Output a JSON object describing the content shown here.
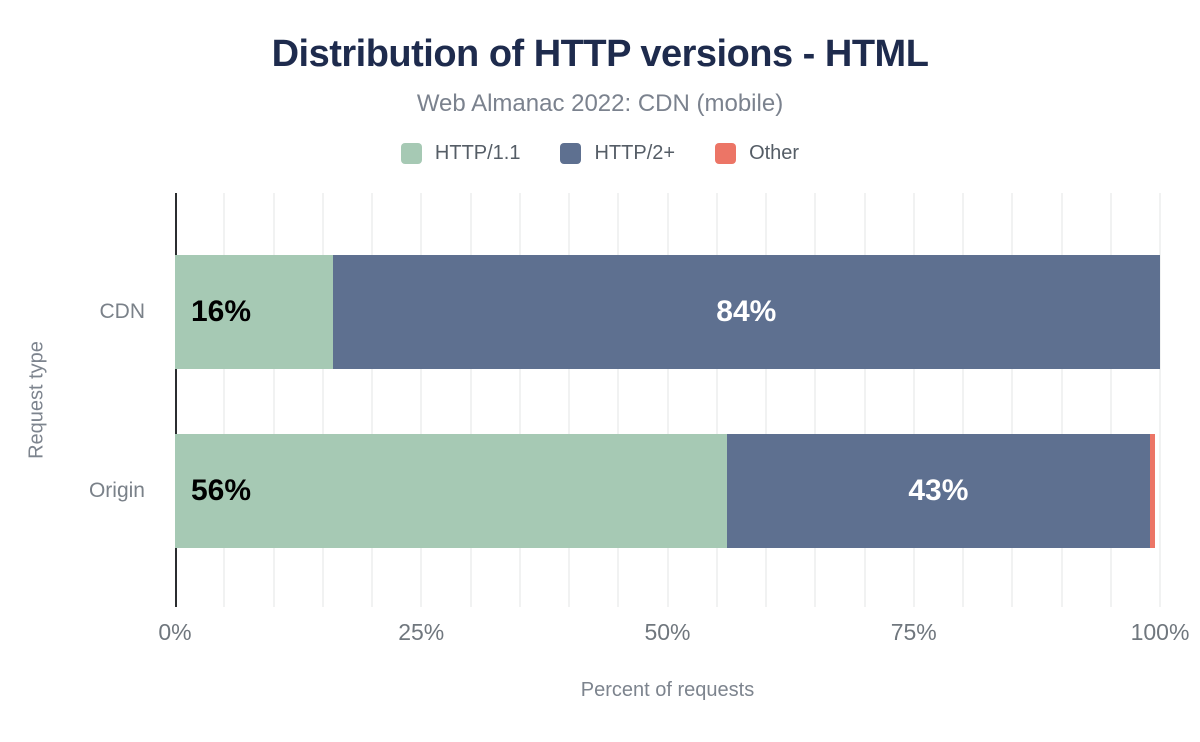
{
  "header": {
    "title": "Distribution of HTTP versions - HTML",
    "subtitle": "Web Almanac 2022: CDN (mobile)"
  },
  "chart_data": {
    "type": "bar",
    "orientation": "horizontal",
    "stacked": true,
    "title": "Distribution of HTTP versions - HTML",
    "subtitle": "Web Almanac 2022: CDN (mobile)",
    "xlabel": "Percent of requests",
    "ylabel": "Request type",
    "categories": [
      "CDN",
      "Origin"
    ],
    "series": [
      {
        "name": "HTTP/1.1",
        "color": "#a6c9b4",
        "values": [
          16,
          56
        ],
        "labels": [
          "16%",
          "56%"
        ],
        "label_color": "#000000",
        "label_align": "left"
      },
      {
        "name": "HTTP/2+",
        "color": "#5e7090",
        "values": [
          84,
          43
        ],
        "labels": [
          "84%",
          "43%"
        ],
        "label_color": "#ffffff",
        "label_align": "center"
      },
      {
        "name": "Other",
        "color": "#ec7566",
        "values": [
          0,
          0.5
        ],
        "labels": [
          "",
          ""
        ],
        "label_color": "#ffffff",
        "label_align": "center"
      }
    ],
    "xlim": [
      0,
      100
    ],
    "x_tick_labels": [
      "0%",
      "25%",
      "50%",
      "75%",
      "100%"
    ],
    "x_tick_values": [
      0,
      25,
      50,
      75,
      100
    ],
    "grid_step": 5,
    "grid_on": true,
    "legend_position": "top",
    "colors": {
      "title": "#1e2b4d",
      "subtitle": "#7b828e",
      "legend_text": "#555d66",
      "axis_text": "#70777e",
      "category_text": "#7a8189",
      "axis_line": "#2b2d30",
      "gridline": "#f1f2f2",
      "background": "#ffffff"
    }
  }
}
